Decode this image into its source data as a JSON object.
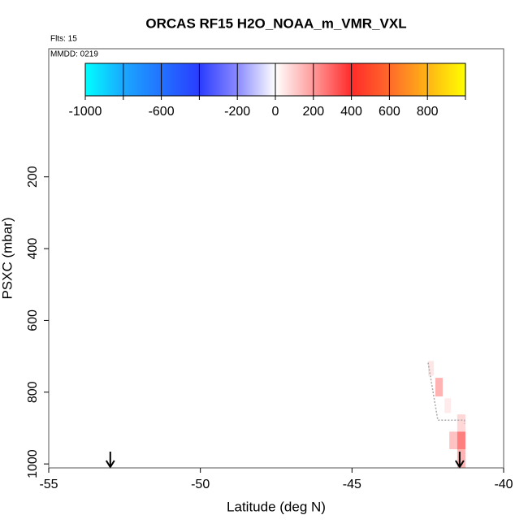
{
  "chart_data": {
    "type": "curtain",
    "title": "ORCAS RF15 H2O_NOAA_m_VMR_VXL",
    "flights_label": "Flts: 15",
    "date_label": "MMDD: 0219",
    "x_label": "Latitude (deg N)",
    "y_label": "PSXC (mbar)",
    "xlim": [
      -55,
      -40
    ],
    "xticks": [
      -55,
      -50,
      -45,
      -40
    ],
    "ylim": [
      1011,
      -157
    ],
    "yticks": [
      200,
      400,
      600,
      800,
      1000
    ],
    "colorbar": {
      "lim": [
        -1000,
        1000
      ],
      "ticks": [
        -1000,
        -600,
        -200,
        0,
        200,
        400,
        600,
        800
      ],
      "breaks": [
        -1000,
        -800,
        -600,
        -400,
        -200,
        0,
        200,
        400,
        600,
        800,
        1000
      ],
      "stops": [
        {
          "value": -1000,
          "color": "#00ffff"
        },
        {
          "value": -800,
          "color": "#1aa8ff"
        },
        {
          "value": -400,
          "color": "#2a3cff"
        },
        {
          "value": -200,
          "color": "#8a8aff"
        },
        {
          "value": 0,
          "color": "#ffffff"
        },
        {
          "value": 200,
          "color": "#ff9a9a"
        },
        {
          "value": 400,
          "color": "#ff2a2a"
        },
        {
          "value": 600,
          "color": "#ff6a2a"
        },
        {
          "value": 1000,
          "color": "#ffff00"
        }
      ]
    },
    "cells": [
      {
        "lat": [
          -42.49,
          -42.3
        ],
        "p": [
          713,
          754
        ],
        "value": 50
      },
      {
        "lat": [
          -42.25,
          -42.01
        ],
        "p": [
          760,
          812
        ],
        "value": 150
      },
      {
        "lat": [
          -41.95,
          -41.74
        ],
        "p": [
          817,
          858
        ],
        "value": 40
      },
      {
        "lat": [
          -41.79,
          -41.53
        ],
        "p": [
          910,
          959
        ],
        "value": 120
      },
      {
        "lat": [
          -41.53,
          -41.26
        ],
        "p": [
          862,
          910
        ],
        "value": 80
      },
      {
        "lat": [
          -41.53,
          -41.26
        ],
        "p": [
          910,
          959
        ],
        "value": 250
      },
      {
        "lat": [
          -41.53,
          -41.26
        ],
        "p": [
          959,
          1011
        ],
        "value": 150
      }
    ],
    "track": {
      "color": "#aaaaaa",
      "x": [
        -42.49,
        -42.17,
        -41.29,
        -41.29
      ],
      "y": [
        718,
        878,
        878,
        888
      ]
    },
    "arrows": [
      -52.97,
      -41.45
    ]
  }
}
